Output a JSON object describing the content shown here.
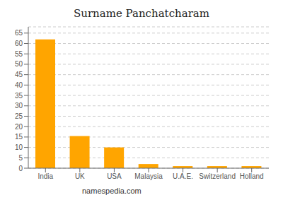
{
  "chart_data": {
    "type": "bar",
    "title": "Surname Panchatcharam",
    "categories": [
      "India",
      "UK",
      "USA",
      "Malaysia",
      "U.A.E.",
      "Switzerland",
      "Holland"
    ],
    "values": [
      62,
      15.5,
      10,
      2,
      1,
      1,
      1
    ],
    "color": "#FFA500",
    "ylim": [
      0,
      68
    ],
    "yticks": [
      0,
      5,
      10,
      15,
      20,
      25,
      30,
      35,
      40,
      45,
      50,
      55,
      60,
      65
    ],
    "grid": true,
    "annotations": [
      "namespedia.com"
    ]
  }
}
